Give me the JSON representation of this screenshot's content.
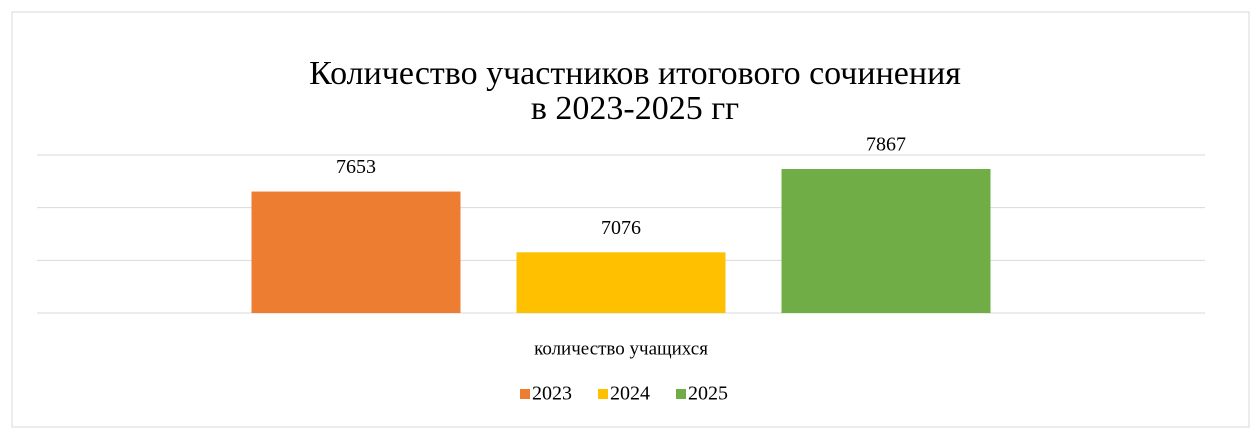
{
  "chart_data": {
    "type": "bar",
    "title": [
      "Количество участников итогового сочинения",
      "в 2023-2025 гг"
    ],
    "categories": [
      "количество учащихся"
    ],
    "series": [
      {
        "name": "2023",
        "color": "#ed7d31",
        "values": [
          7653
        ]
      },
      {
        "name": "2024",
        "color": "#ffc000",
        "values": [
          7076
        ]
      },
      {
        "name": "2025",
        "color": "#70ad47",
        "values": [
          7867
        ]
      }
    ],
    "ylim": [
      6500,
      8000
    ],
    "yticks": [
      6500,
      7000,
      7500,
      8000
    ],
    "grid": true,
    "legend": "bottom"
  }
}
